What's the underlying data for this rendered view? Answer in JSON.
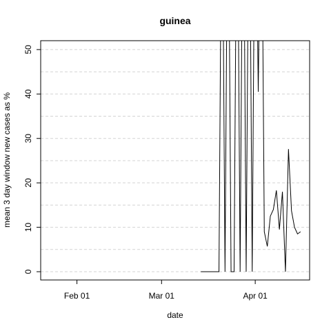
{
  "chart_data": {
    "type": "line",
    "title": "guinea",
    "xlabel": "date",
    "ylabel": "mean  3  day window new cases as %",
    "x": [
      "Mar 14",
      "Mar 15",
      "Mar 16",
      "Mar 17",
      "Mar 18",
      "Mar 19",
      "Mar 20",
      "Mar 21",
      "Mar 22",
      "Mar 23",
      "Mar 24",
      "Mar 25",
      "Mar 26",
      "Mar 27",
      "Mar 28",
      "Mar 29",
      "Mar 30",
      "Mar 31",
      "Apr 01",
      "Apr 02",
      "Apr 03",
      "Apr 04",
      "Apr 05",
      "Apr 06",
      "Apr 07",
      "Apr 08",
      "Apr 09",
      "Apr 10",
      "Apr 11",
      "Apr 12",
      "Apr 13",
      "Apr 14",
      "Apr 15",
      "Apr 16"
    ],
    "values": [
      0,
      0,
      0,
      0,
      0,
      0,
      0,
      100,
      0,
      100,
      0,
      0,
      100,
      0,
      100,
      0,
      100,
      0,
      100,
      40.5,
      100,
      9,
      5.7,
      12.5,
      14,
      18.3,
      9.5,
      18,
      0,
      27.6,
      13.7,
      10,
      8.5,
      9
    ],
    "color": "#000000",
    "xlim": [
      "Jan 20",
      "Apr 19"
    ],
    "xticks": [
      "Feb 01",
      "Mar 01",
      "Apr 01"
    ],
    "ylim": [
      -1.86,
      52
    ],
    "yticks": [
      0,
      10,
      20,
      30,
      40,
      50
    ],
    "ygrid": [
      0,
      5,
      10,
      15,
      20,
      25,
      30,
      35,
      40,
      45,
      50
    ],
    "grid": true
  }
}
